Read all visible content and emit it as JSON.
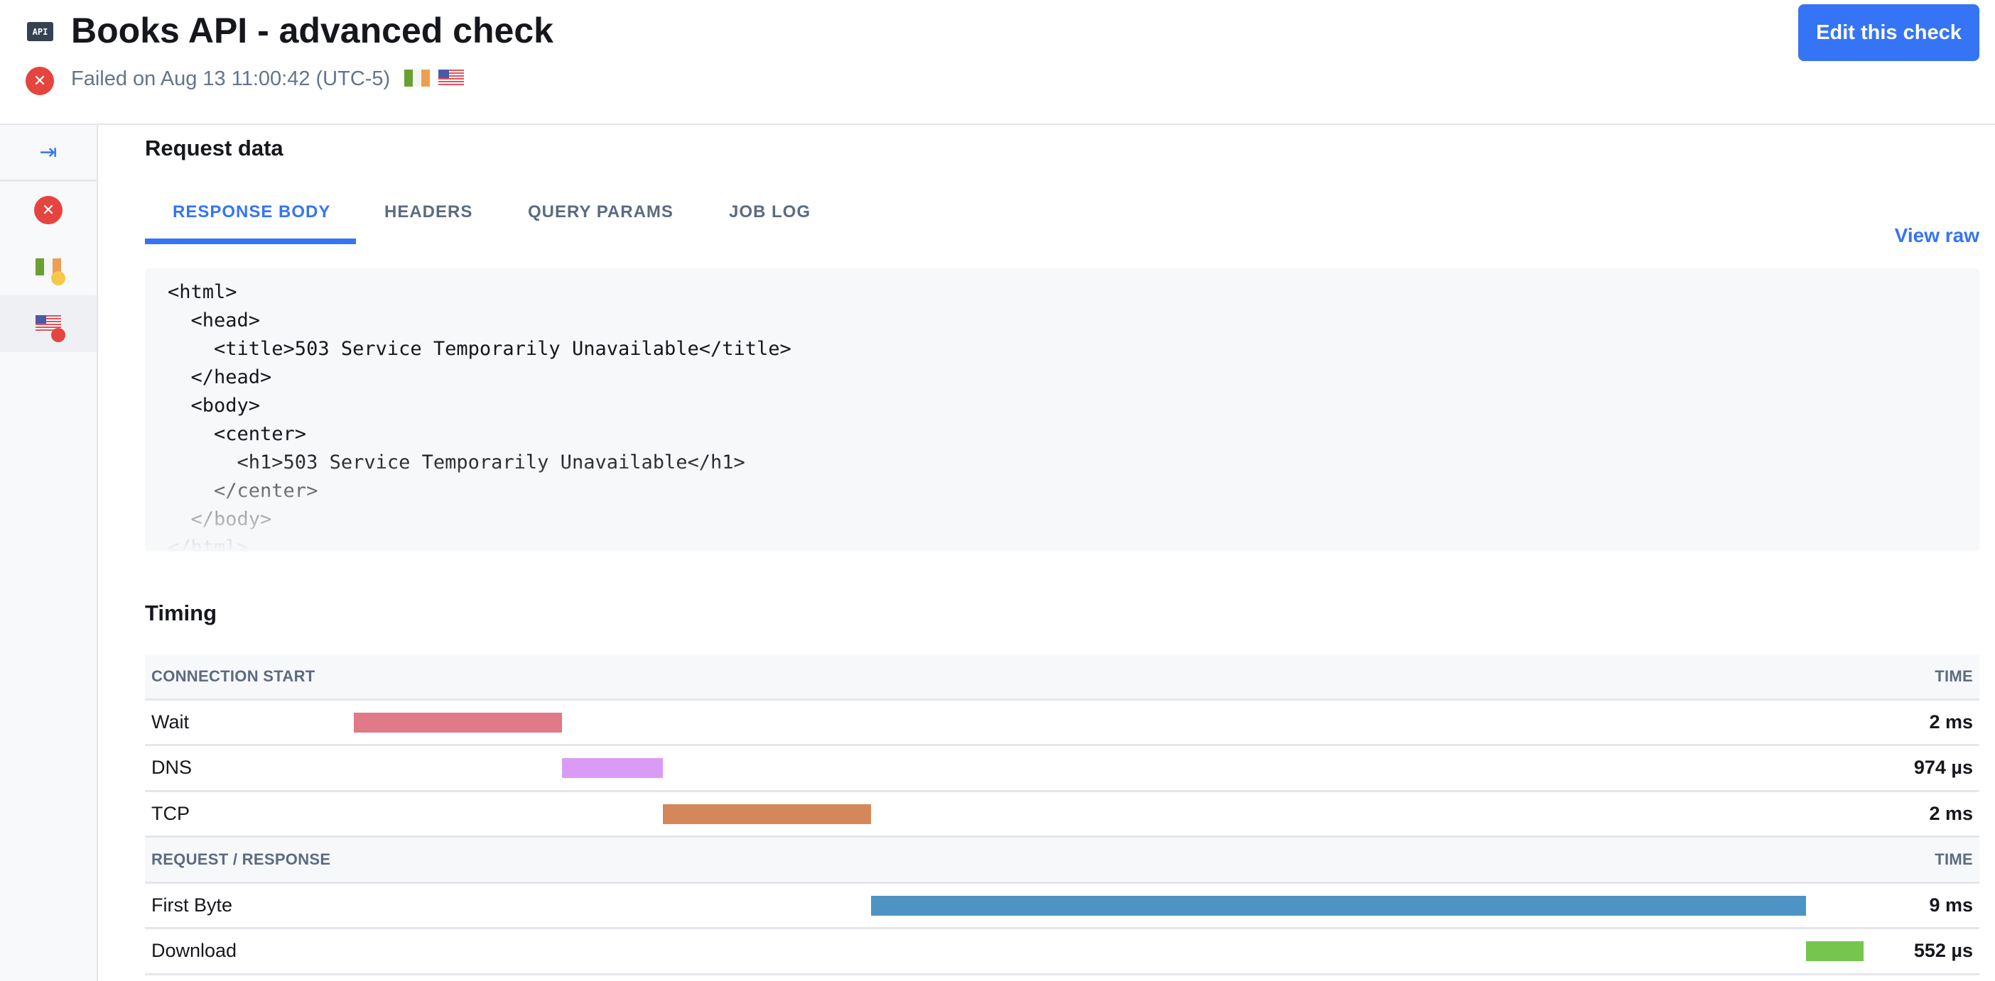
{
  "header": {
    "api_badge": "API",
    "title": "Books API - advanced check",
    "status_text": "Failed on Aug 13 11:00:42 (UTC-5)",
    "status": "failed",
    "edit_button": "Edit this check",
    "flags": [
      "ireland-flag",
      "us-flag"
    ]
  },
  "sidebar": {
    "items": [
      {
        "icon": "expand-sidebar-icon"
      },
      {
        "icon": "error-icon",
        "status": "failed"
      },
      {
        "icon": "ireland-flag",
        "status_color": "#f5c84c"
      },
      {
        "icon": "us-flag",
        "status_color": "#e5443f",
        "selected": true
      }
    ]
  },
  "request": {
    "heading": "Request data",
    "tabs": [
      {
        "label": "RESPONSE BODY",
        "active": true
      },
      {
        "label": "HEADERS"
      },
      {
        "label": "QUERY PARAMS"
      },
      {
        "label": "JOB LOG"
      }
    ],
    "view_raw": "View raw",
    "body": "<html>\n  <head>\n    <title>503 Service Temporarily Unavailable</title>\n  </head>\n  <body>\n    <center>\n      <h1>503 Service Temporarily Unavailable</h1>\n    </center>\n  </body>\n</html>"
  },
  "timing": {
    "heading": "Timing",
    "groups": [
      {
        "label": "CONNECTION START",
        "time_header": "TIME",
        "rows": [
          {
            "label": "Wait",
            "time": "2 ms",
            "ms": 2,
            "color": "#e07a86"
          },
          {
            "label": "DNS",
            "time": "974 µs",
            "ms": 0.974,
            "color": "#da9bf5"
          },
          {
            "label": "TCP",
            "time": "2 ms",
            "ms": 2,
            "color": "#d4885a"
          }
        ]
      },
      {
        "label": "REQUEST / RESPONSE",
        "time_header": "TIME",
        "rows": [
          {
            "label": "First Byte",
            "time": "9 ms",
            "ms": 9,
            "color": "#4d94c5"
          },
          {
            "label": "Download",
            "time": "552 µs",
            "ms": 0.552,
            "color": "#76c54e"
          }
        ]
      }
    ]
  },
  "colors": {
    "accent": "#3574f5",
    "error": "#e5443f"
  }
}
